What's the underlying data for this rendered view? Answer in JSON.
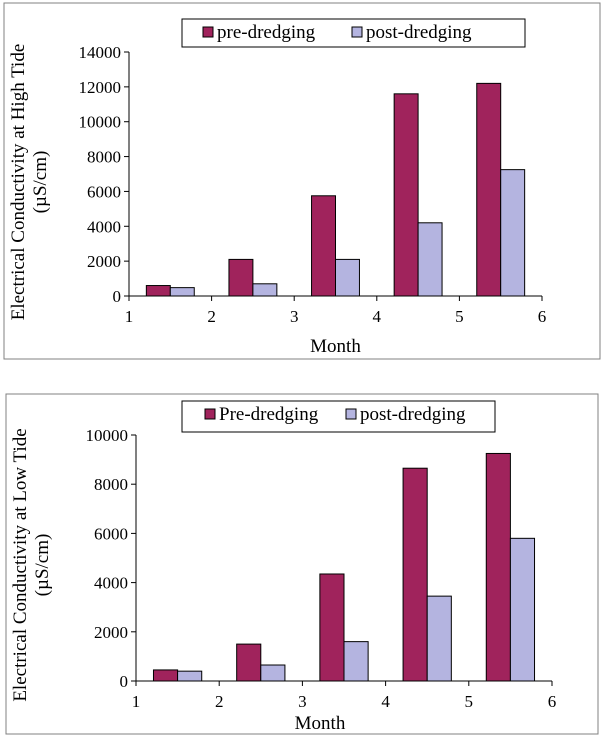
{
  "chart_data": [
    {
      "type": "bar",
      "ylabel_line1": "Electrical Conductivity at High Tide",
      "ylabel_line2": "(µS/cm)",
      "xlabel": "Month",
      "ylim": [
        0,
        14000
      ],
      "yticks": [
        "0",
        "2000",
        "4000",
        "6000",
        "8000",
        "10000",
        "12000",
        "14000"
      ],
      "xlim": [
        1,
        6
      ],
      "xticks": [
        "1",
        "2",
        "3",
        "4",
        "5",
        "6"
      ],
      "grid": false,
      "legend_position": "top",
      "categories": [
        1,
        2,
        3,
        4,
        5
      ],
      "series": [
        {
          "name": "pre-dredging",
          "color": "#a0235c",
          "values": [
            600,
            2100,
            5750,
            11600,
            12200
          ]
        },
        {
          "name": "post-dredging",
          "color": "#b4b4e0",
          "values": [
            480,
            700,
            2100,
            4200,
            7250
          ]
        }
      ]
    },
    {
      "type": "bar",
      "ylabel_line1": "Electrical Conductivity at Low Tide",
      "ylabel_line2": "(µS/cm)",
      "xlabel": "Month",
      "ylim": [
        0,
        10000
      ],
      "yticks": [
        "0",
        "2000",
        "4000",
        "6000",
        "8000",
        "10000"
      ],
      "xlim": [
        1,
        6
      ],
      "xticks": [
        "1",
        "2",
        "3",
        "4",
        "5",
        "6"
      ],
      "grid": false,
      "legend_position": "top",
      "categories": [
        1,
        2,
        3,
        4,
        5
      ],
      "series": [
        {
          "name": "Pre-dredging",
          "color": "#a0235c",
          "values": [
            450,
            1500,
            4350,
            8650,
            9250
          ]
        },
        {
          "name": "post-dredging",
          "color": "#b4b4e0",
          "values": [
            400,
            650,
            1600,
            3450,
            5800
          ]
        }
      ]
    }
  ]
}
